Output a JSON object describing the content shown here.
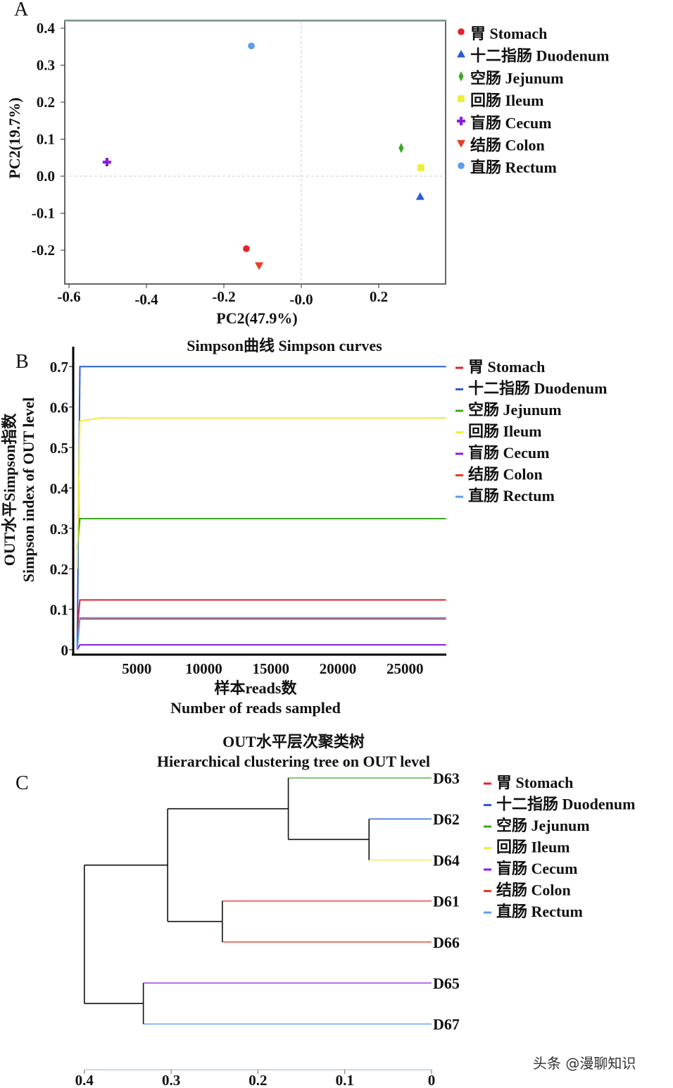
{
  "legend": [
    {
      "key": "stomach",
      "label": "胃  Stomach",
      "color": "#e8202a",
      "marker": "circle"
    },
    {
      "key": "duodenum",
      "label": "十二指肠  Duodenum",
      "color": "#2a5bd7",
      "marker": "triangle-up"
    },
    {
      "key": "jejunum",
      "label": "空肠  Jejunum",
      "color": "#3aa822",
      "marker": "diamond"
    },
    {
      "key": "ileum",
      "label": "回肠  Ileum",
      "color": "#f0ec3a",
      "marker": "square"
    },
    {
      "key": "cecum",
      "label": "盲肠  Cecum",
      "color": "#8a1ce0",
      "marker": "plus"
    },
    {
      "key": "colon",
      "label": "结肠  Colon",
      "color": "#f03a22",
      "marker": "triangle-down"
    },
    {
      "key": "rectum",
      "label": "直肠  Rectum",
      "color": "#5b9ef0",
      "marker": "circle"
    }
  ],
  "watermark": "头条 @漫聊知识",
  "chart_data": [
    {
      "panel": "A",
      "type": "scatter",
      "xlabel": "PC2(47.9%)",
      "ylabel": "PC2(19.7%)",
      "xlim": [
        -0.61,
        0.375
      ],
      "ylim": [
        -0.29,
        0.42
      ],
      "xticks": [
        "-0.6",
        "-0.4",
        "-0.2",
        "-0.0",
        "0.2"
      ],
      "xtick_values": [
        -0.6,
        -0.4,
        -0.2,
        0.0,
        0.2
      ],
      "yticks": [
        "0.4",
        "0.3",
        "0.2",
        "0.1",
        "0.0",
        "-0.1",
        "-0.2"
      ],
      "ytick_values": [
        0.4,
        0.3,
        0.2,
        0.1,
        0.0,
        -0.1,
        -0.2
      ],
      "grid": "dashed zero lines",
      "legend_position": "right",
      "points": [
        {
          "key": "stomach",
          "x": -0.142,
          "y": -0.196
        },
        {
          "key": "duodenum",
          "x": 0.307,
          "y": -0.055
        },
        {
          "key": "jejunum",
          "x": 0.258,
          "y": 0.076
        },
        {
          "key": "ileum",
          "x": 0.309,
          "y": 0.023
        },
        {
          "key": "cecum",
          "x": -0.502,
          "y": 0.038
        },
        {
          "key": "colon",
          "x": -0.109,
          "y": -0.242
        },
        {
          "key": "rectum",
          "x": -0.129,
          "y": 0.352
        }
      ]
    },
    {
      "panel": "B",
      "type": "line",
      "title": "Simpson曲线  Simpson curves",
      "xlabel": [
        "样本reads数",
        "Number of reads sampled"
      ],
      "ylabel": [
        "OUT水平Simpson指数",
        "Simpson index of OUT level"
      ],
      "xlim": [
        0,
        27800
      ],
      "ylim": [
        0,
        0.72
      ],
      "xticks": [
        "5000",
        "10000",
        "15000",
        "20000",
        "25000"
      ],
      "xtick_values": [
        5000,
        10000,
        15000,
        20000,
        25000
      ],
      "yticks": [
        "0",
        "0.1",
        "0.2",
        "0.3",
        "0.4",
        "0.5",
        "0.6",
        "0.7"
      ],
      "ytick_values": [
        0,
        0.1,
        0.2,
        0.3,
        0.4,
        0.5,
        0.6,
        0.7
      ],
      "legend_position": "right",
      "series": [
        {
          "key": "stomach",
          "points": [
            [
              300,
              0.05
            ],
            [
              500,
              0.123
            ],
            [
              27800,
              0.123
            ]
          ]
        },
        {
          "key": "duodenum",
          "points": [
            [
              300,
              0.0
            ],
            [
              500,
              0.7
            ],
            [
              27800,
              0.7
            ]
          ]
        },
        {
          "key": "jejunum",
          "points": [
            [
              300,
              0.25
            ],
            [
              500,
              0.324
            ],
            [
              27800,
              0.324
            ]
          ]
        },
        {
          "key": "ileum",
          "points": [
            [
              300,
              0.2
            ],
            [
              500,
              0.565
            ],
            [
              2000,
              0.573
            ],
            [
              27800,
              0.573
            ]
          ]
        },
        {
          "key": "cecum",
          "points": [
            [
              300,
              0.0
            ],
            [
              500,
              0.012
            ],
            [
              27800,
              0.012
            ]
          ]
        },
        {
          "key": "colon",
          "points": [
            [
              300,
              0.04
            ],
            [
              500,
              0.076
            ],
            [
              27800,
              0.076
            ]
          ]
        },
        {
          "key": "rectum",
          "points": [
            [
              300,
              0.0
            ],
            [
              500,
              0.079
            ],
            [
              27800,
              0.079
            ]
          ]
        }
      ]
    },
    {
      "panel": "C",
      "type": "dendrogram",
      "title": [
        "OUT水平层次聚类树",
        "Hierarchical clustering tree on OUT level"
      ],
      "xlim": [
        0.4,
        0
      ],
      "xticks": [
        "0.4",
        "0.3",
        "0.2",
        "0.1",
        "0"
      ],
      "xtick_values": [
        0.4,
        0.3,
        0.2,
        0.1,
        0
      ],
      "legend_position": "right",
      "leaves": [
        {
          "label": "D63",
          "key": "jejunum"
        },
        {
          "label": "D62",
          "key": "duodenum"
        },
        {
          "label": "D64",
          "key": "ileum"
        },
        {
          "label": "D61",
          "key": "stomach"
        },
        {
          "label": "D66",
          "key": "colon"
        },
        {
          "label": "D65",
          "key": "cecum"
        },
        {
          "label": "D67",
          "key": "rectum"
        }
      ],
      "merges": [
        {
          "id": "n1",
          "children": [
            "D62",
            "D64"
          ],
          "height": 0.072
        },
        {
          "id": "n2",
          "children": [
            "D63",
            "n1"
          ],
          "height": 0.165
        },
        {
          "id": "n3",
          "children": [
            "D61",
            "D66"
          ],
          "height": 0.241
        },
        {
          "id": "n4",
          "children": [
            "n2",
            "n3"
          ],
          "height": 0.304
        },
        {
          "id": "n5",
          "children": [
            "D65",
            "D67"
          ],
          "height": 0.332
        },
        {
          "id": "n6",
          "children": [
            "n4",
            "n5"
          ],
          "height": 0.4
        }
      ]
    }
  ]
}
